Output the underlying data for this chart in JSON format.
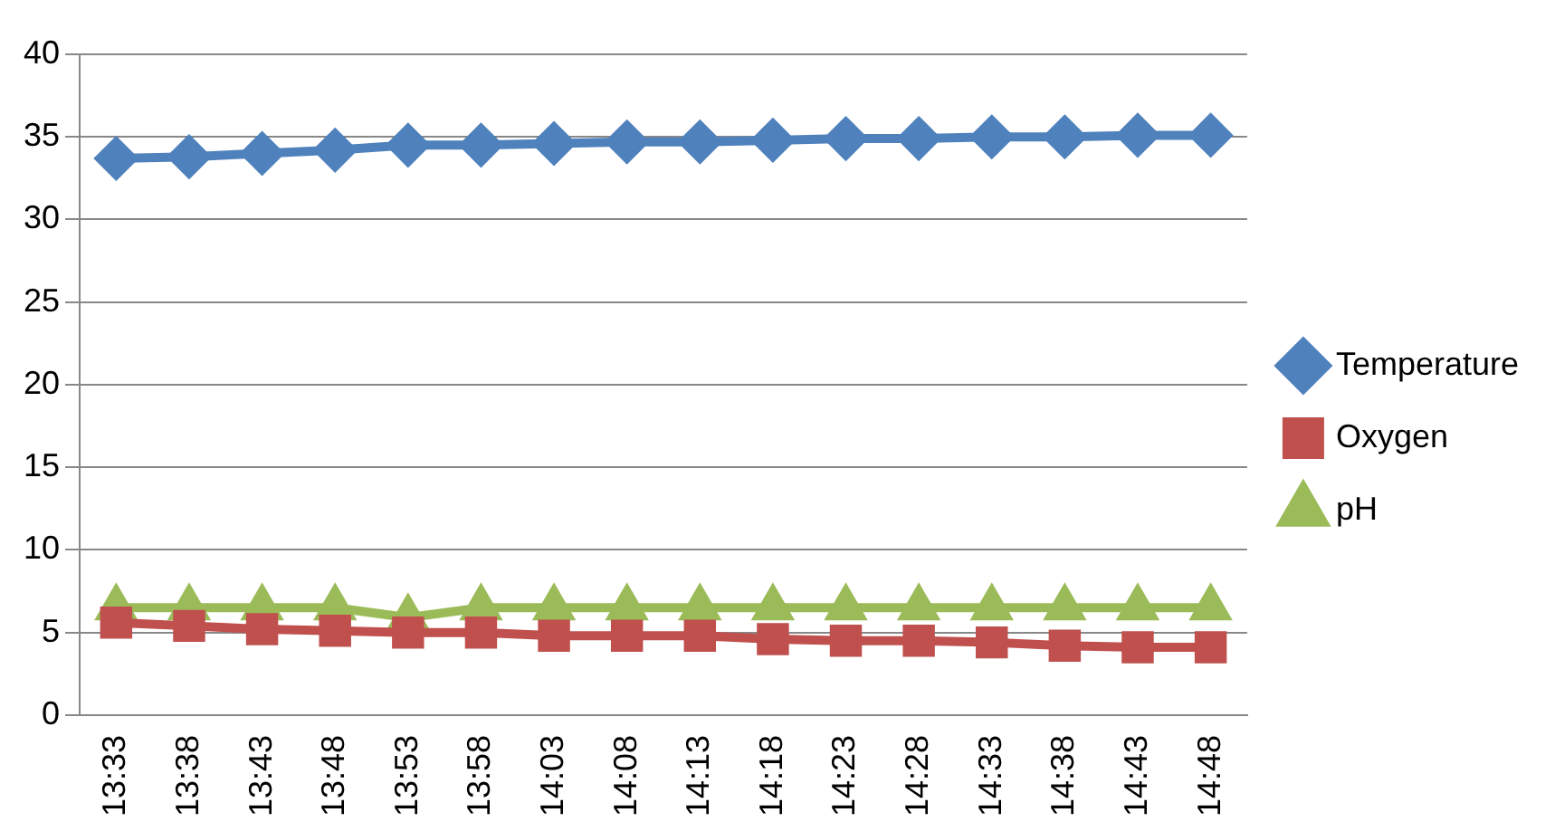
{
  "chart_data": {
    "type": "line",
    "categories": [
      "13:33",
      "13:38",
      "13:43",
      "13:48",
      "13:53",
      "13:58",
      "14:03",
      "14:08",
      "14:13",
      "14:18",
      "14:23",
      "14:28",
      "14:33",
      "14:38",
      "14:43",
      "14:48"
    ],
    "series": [
      {
        "name": "Temperature",
        "color": "#4f81bd",
        "marker": "diamond",
        "values": [
          33.7,
          33.8,
          34.0,
          34.2,
          34.5,
          34.5,
          34.6,
          34.7,
          34.7,
          34.8,
          34.9,
          34.9,
          35.0,
          35.0,
          35.1,
          35.1
        ]
      },
      {
        "name": "Oxygen",
        "color": "#c0504d",
        "marker": "square",
        "values": [
          5.6,
          5.4,
          5.2,
          5.1,
          5.0,
          5.0,
          4.8,
          4.8,
          4.8,
          4.6,
          4.5,
          4.5,
          4.4,
          4.2,
          4.1,
          4.1
        ]
      },
      {
        "name": "pH",
        "color": "#9bbb59",
        "marker": "triangle",
        "values": [
          6.5,
          6.5,
          6.5,
          6.5,
          5.9,
          6.5,
          6.5,
          6.5,
          6.5,
          6.5,
          6.5,
          6.5,
          6.5,
          6.5,
          6.5,
          6.5
        ]
      }
    ],
    "ylim": [
      0,
      40
    ],
    "yticks": [
      0,
      5,
      10,
      15,
      20,
      25,
      30,
      35,
      40
    ],
    "grid": "y",
    "legend": "right"
  }
}
